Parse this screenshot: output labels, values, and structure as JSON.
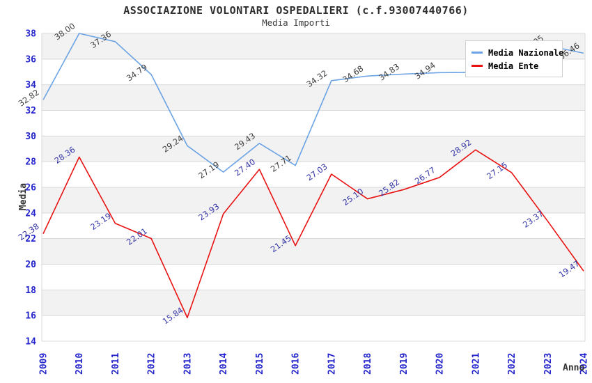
{
  "title": "ASSOCIAZIONE VOLONTARI OSPEDALIERI (c.f.93007440766)",
  "subtitle": "Media Importi",
  "chart_data": {
    "type": "line",
    "x": [
      2009,
      2010,
      2011,
      2012,
      2013,
      2014,
      2015,
      2016,
      2017,
      2018,
      2019,
      2020,
      2021,
      2022,
      2023,
      2024
    ],
    "series": [
      {
        "name": "Media Nazionale",
        "color": "#6ba3e4",
        "label_color": "#3d3d3d",
        "values": [
          32.82,
          38.0,
          37.36,
          34.79,
          29.24,
          27.19,
          29.43,
          27.71,
          34.32,
          34.68,
          34.83,
          34.94,
          34.97,
          35.05,
          37.05,
          36.46
        ],
        "labels": [
          "32.82",
          "38.00",
          "37.36",
          "34.79",
          "29.24",
          "27.19",
          "29.43",
          "27.71",
          "34.32",
          "34.68",
          "34.83",
          "34.94",
          "",
          "",
          "37.05",
          "36.46"
        ]
      },
      {
        "name": "Media Ente",
        "color": "#e81212",
        "label_color": "#3434a8",
        "values": [
          22.38,
          28.36,
          23.19,
          22.01,
          15.84,
          23.93,
          27.4,
          21.45,
          27.03,
          25.1,
          25.82,
          26.77,
          28.92,
          27.15,
          23.37,
          19.47
        ],
        "labels": [
          "22.38",
          "28.36",
          "23.19",
          "22.01",
          "15.84",
          "23.93",
          "27.40",
          "21.45",
          "27.03",
          "25.10",
          "25.82",
          "26.77",
          "28.92",
          "27.15",
          "23.37",
          "19.47"
        ]
      }
    ],
    "xlabel": "Anno",
    "ylabel": "Media",
    "ylim": [
      14,
      38
    ],
    "ytick_step": 2,
    "grid": true,
    "legend_position": "top-right",
    "band_color": "#f2f2f2",
    "grid_color": "#d9d9d9",
    "tick_color": "#2424cc"
  }
}
